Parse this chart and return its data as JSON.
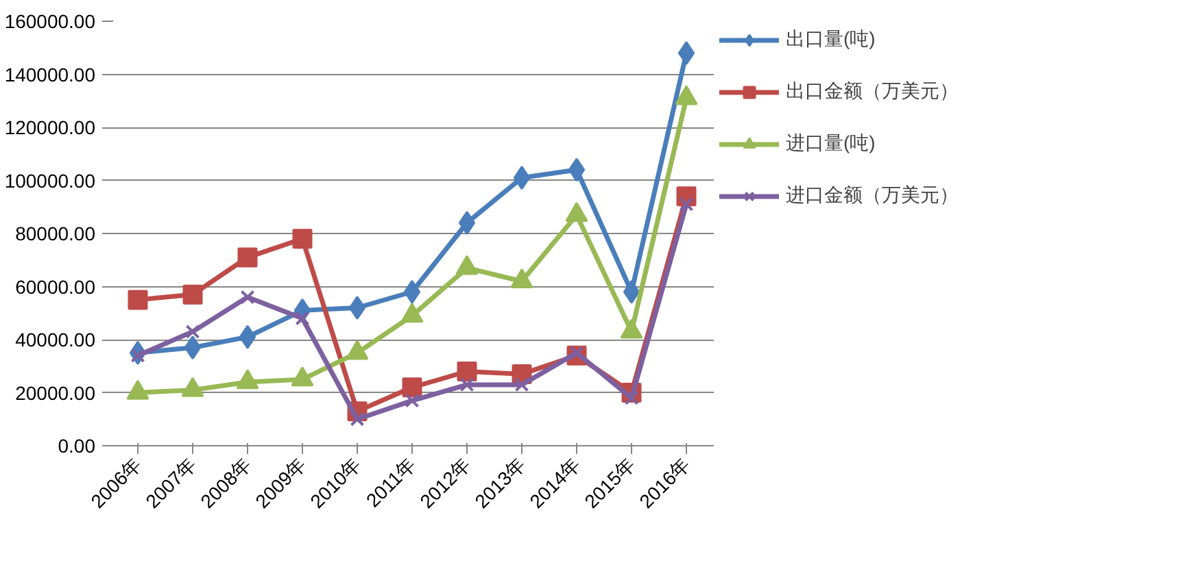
{
  "chart_data": {
    "type": "line",
    "categories": [
      "2006年",
      "2007年",
      "2008年",
      "2009年",
      "2010年",
      "2011年",
      "2012年",
      "2013年",
      "2014年",
      "2015年",
      "2016年"
    ],
    "series": [
      {
        "name": "出口量(吨)",
        "color": "#4a7ebb",
        "marker": "diamond",
        "values": [
          35000,
          37000,
          41000,
          51000,
          52000,
          58000,
          84000,
          101000,
          104000,
          58000,
          148000
        ]
      },
      {
        "name": "出口金额（万美元）",
        "color": "#be4b48",
        "marker": "square",
        "values": [
          55000,
          57000,
          71000,
          78000,
          13000,
          22000,
          28000,
          27000,
          34000,
          20000,
          94000
        ]
      },
      {
        "name": "进口量(吨)",
        "color": "#98b954",
        "marker": "triangle",
        "values": [
          20000,
          21000,
          24000,
          25000,
          35000,
          49000,
          67000,
          62000,
          87000,
          43000,
          131000
        ]
      },
      {
        "name": "进口金额（万美元）",
        "color": "#7d60a0",
        "marker": "cross",
        "values": [
          34000,
          43000,
          56000,
          48000,
          10000,
          17000,
          23000,
          23000,
          35000,
          18000,
          91000
        ]
      }
    ],
    "ylim": [
      0,
      160000
    ],
    "yticks": [
      {
        "value": 0,
        "label": "0.00"
      },
      {
        "value": 20000,
        "label": "20000.00"
      },
      {
        "value": 40000,
        "label": "40000.00"
      },
      {
        "value": 60000,
        "label": "60000.00"
      },
      {
        "value": 80000,
        "label": "80000.00"
      },
      {
        "value": 100000,
        "label": "100000.00"
      },
      {
        "value": 120000,
        "label": "120000.00"
      },
      {
        "value": 140000,
        "label": "140000.00"
      },
      {
        "value": 160000,
        "label": "160000.00"
      }
    ],
    "grid": "y",
    "legend": "right"
  }
}
